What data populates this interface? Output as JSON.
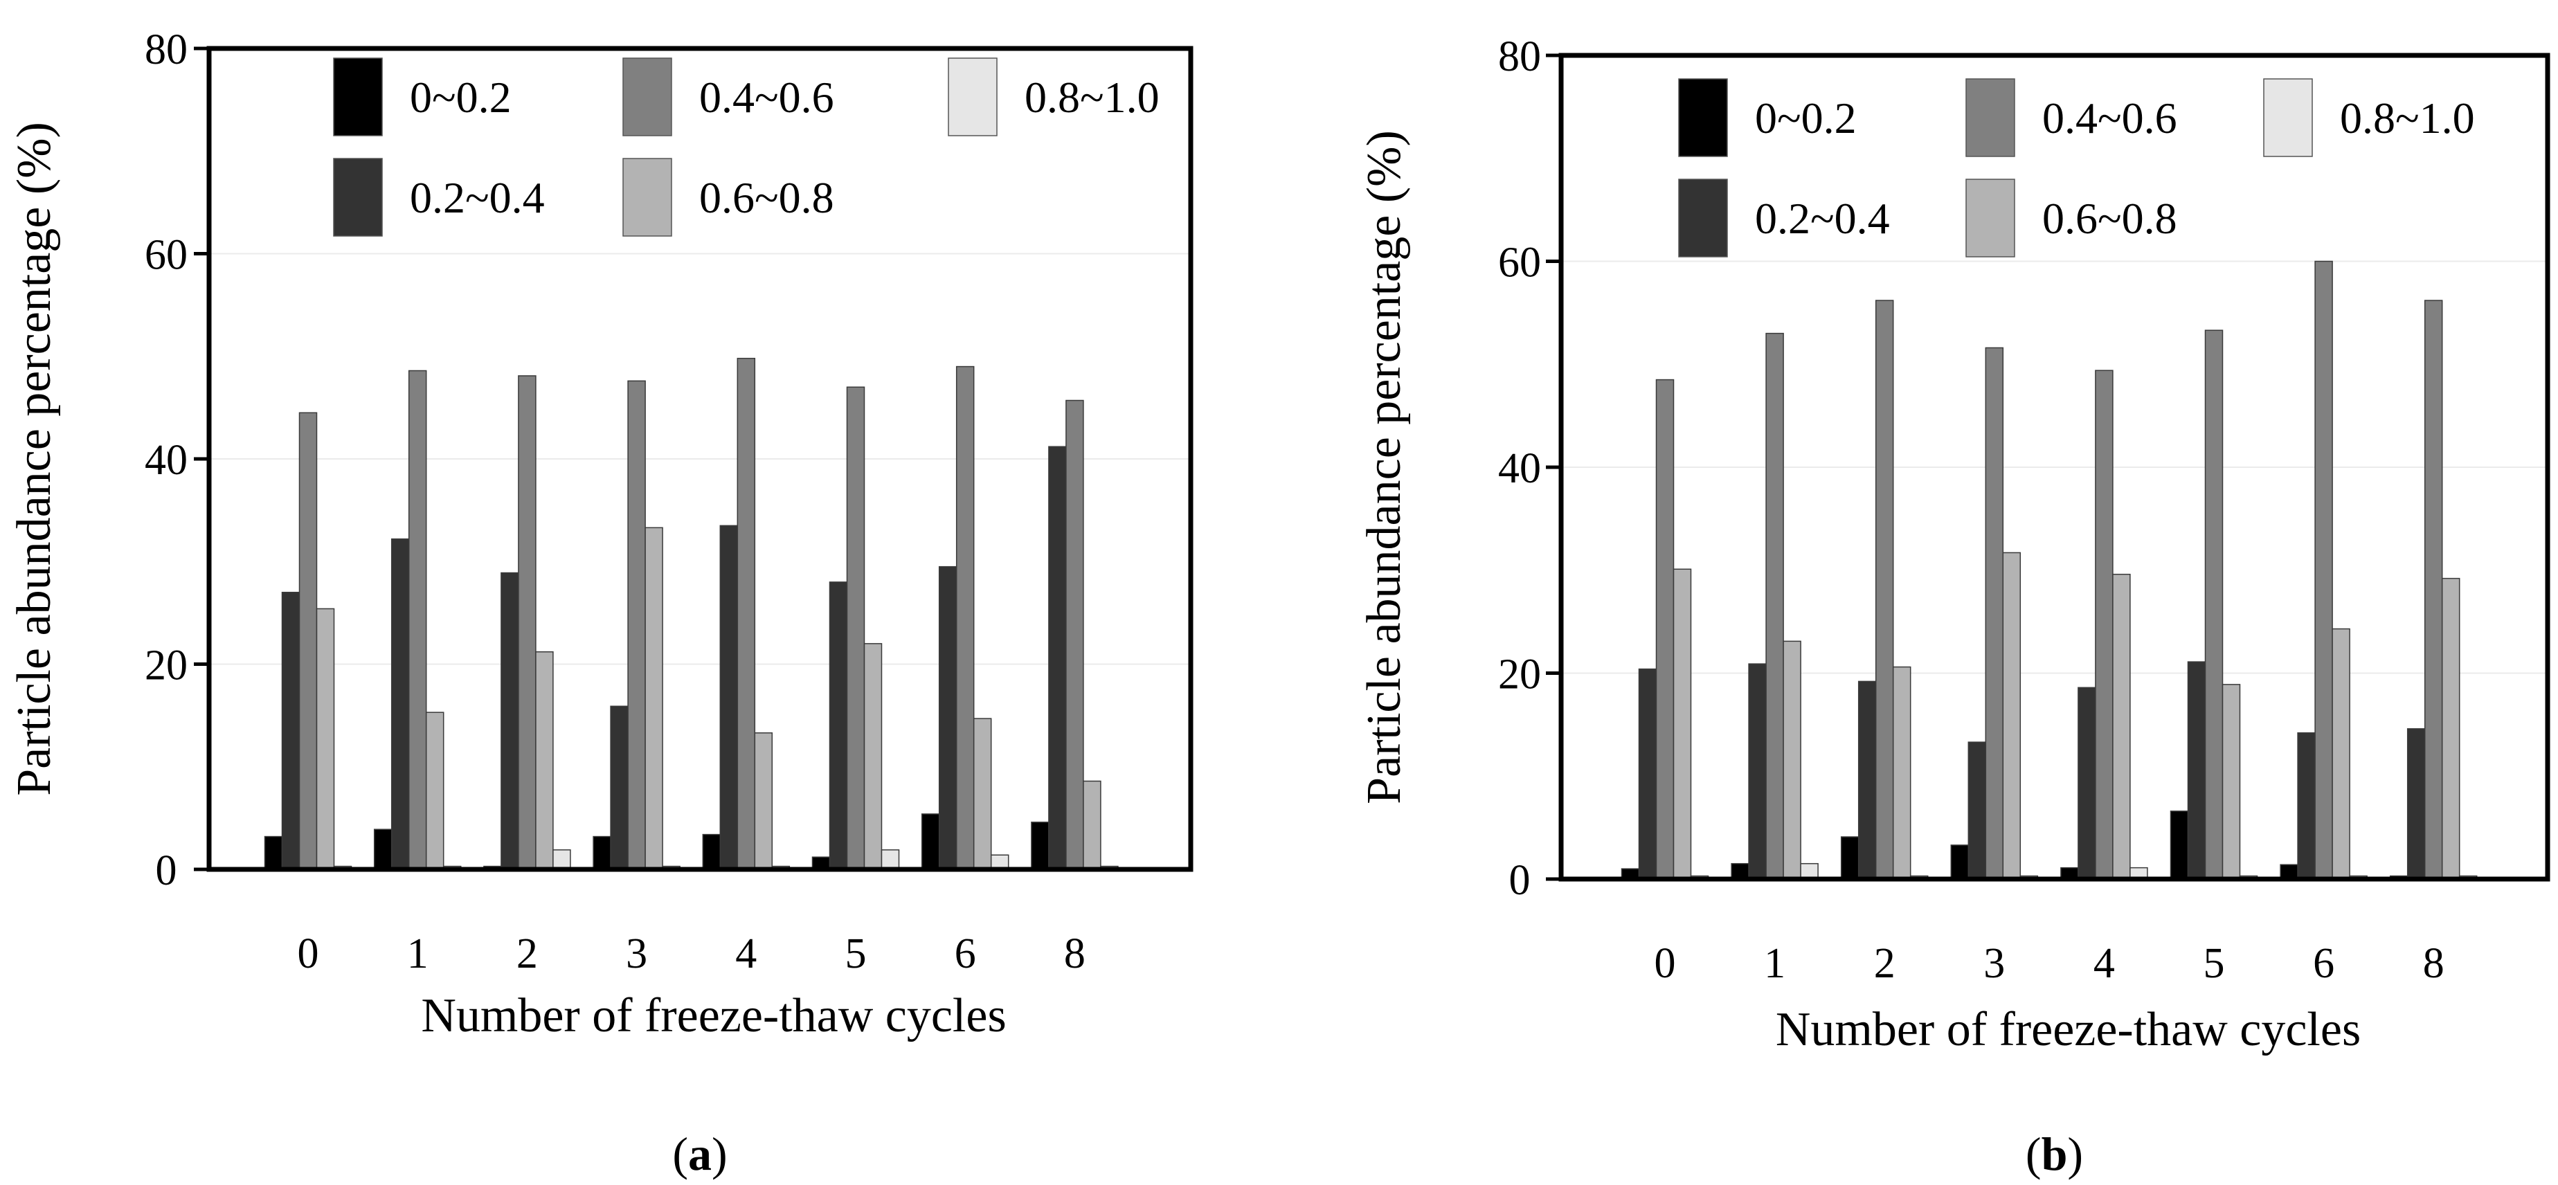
{
  "chart_data": [
    {
      "type": "bar",
      "panel_label": "(a)",
      "panel_letter": "a",
      "xlabel": "Number of freeze-thaw cycles",
      "ylabel": "Particle abundance percentage (%)",
      "ylim": [
        0,
        80
      ],
      "yticks": [
        0,
        20,
        40,
        60,
        80
      ],
      "grid": true,
      "legend_position": "top",
      "categories": [
        "0",
        "1",
        "2",
        "3",
        "4",
        "5",
        "6",
        "8"
      ],
      "series": [
        {
          "name": "0~0.2",
          "color": "#000000",
          "values": [
            3.2,
            3.9,
            0.3,
            3.2,
            3.4,
            1.2,
            5.4,
            4.6
          ]
        },
        {
          "name": "0.2~0.4",
          "color": "#333333",
          "values": [
            27.0,
            32.2,
            28.9,
            15.9,
            33.5,
            28.0,
            29.5,
            41.2
          ]
        },
        {
          "name": "0.4~0.6",
          "color": "#808080",
          "values": [
            44.5,
            48.6,
            48.1,
            47.6,
            49.8,
            47.0,
            49.0,
            45.7
          ]
        },
        {
          "name": "0.6~0.8",
          "color": "#b3b3b3",
          "values": [
            25.4,
            15.3,
            21.2,
            33.3,
            13.3,
            22.0,
            14.7,
            8.6
          ]
        },
        {
          "name": "0.8~1.0",
          "color": "#e6e6e6",
          "values": [
            0.3,
            0.3,
            1.9,
            0.3,
            0.3,
            1.9,
            1.4,
            0.3
          ]
        }
      ]
    },
    {
      "type": "bar",
      "panel_label": "(b)",
      "panel_letter": "b",
      "xlabel": "Number of freeze-thaw cycles",
      "ylabel": "Particle abundance percentage (%)",
      "ylim": [
        0,
        80
      ],
      "yticks": [
        0,
        20,
        40,
        60,
        80
      ],
      "grid": true,
      "legend_position": "top",
      "categories": [
        "0",
        "1",
        "2",
        "3",
        "4",
        "5",
        "6",
        "8"
      ],
      "series": [
        {
          "name": "0~0.2",
          "color": "#000000",
          "values": [
            1.0,
            1.5,
            4.1,
            3.3,
            1.1,
            6.6,
            1.4,
            0.3
          ]
        },
        {
          "name": "0.2~0.4",
          "color": "#333333",
          "values": [
            20.4,
            20.9,
            19.2,
            13.3,
            18.6,
            21.1,
            14.2,
            14.6
          ]
        },
        {
          "name": "0.4~0.6",
          "color": "#808080",
          "values": [
            48.5,
            53.0,
            56.2,
            51.6,
            49.4,
            53.3,
            60.0,
            56.2
          ]
        },
        {
          "name": "0.6~0.8",
          "color": "#b3b3b3",
          "values": [
            30.1,
            23.1,
            20.6,
            31.7,
            29.6,
            18.9,
            24.3,
            29.2
          ]
        },
        {
          "name": "0.8~1.0",
          "color": "#e6e6e6",
          "values": [
            0.3,
            1.5,
            0.3,
            0.3,
            1.1,
            0.3,
            0.3,
            0.3
          ]
        }
      ]
    }
  ]
}
